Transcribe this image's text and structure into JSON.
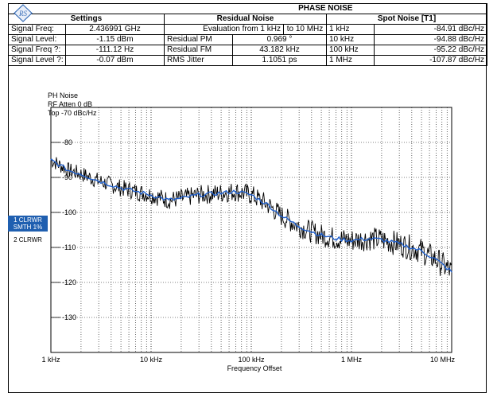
{
  "header": {
    "title": "PHASE NOISE",
    "settings_title": "Settings",
    "residual_title": "Residual Noise",
    "spot_title": "Spot Noise [T1]"
  },
  "settings": [
    {
      "label": "Signal Freq:",
      "value": "2.436991 GHz"
    },
    {
      "label": "Signal Level:",
      "value": "-1.15 dBm"
    },
    {
      "label": "Signal Freq ?:",
      "value": "-111.12 Hz"
    },
    {
      "label": "Signal Level ?:",
      "value": "-0.07 dBm"
    }
  ],
  "residual": {
    "evaluation_label": "Evaluation from 1 kHz",
    "evaluation_to": "to  10 MHz",
    "rows": [
      {
        "label": "Residual PM",
        "value": "0.969 °"
      },
      {
        "label": "Residual FM",
        "value": "43.182 kHz"
      },
      {
        "label": "RMS Jitter",
        "value": "1.1051 ps"
      }
    ]
  },
  "spot_noise": [
    {
      "offset": "1 kHz",
      "value": "-84.91 dBc/Hz"
    },
    {
      "offset": "10 kHz",
      "value": "-94.88 dBc/Hz"
    },
    {
      "offset": "100 kHz",
      "value": "-95.22 dBc/Hz"
    },
    {
      "offset": "1 MHz",
      "value": "-107.87 dBc/Hz"
    }
  ],
  "trace_info": {
    "line1": "PH Noise",
    "line2": "RF Atten       0 dB",
    "line3": "Top -70 dBc/Hz"
  },
  "side_labels": {
    "trace1_line1": "1 CLRWR",
    "trace1_line2": "SMTH 1%",
    "trace2": "2 CLRWR"
  },
  "colors": {
    "trace_raw": "#000000",
    "trace_smoothed": "#1f5fcc",
    "side_label_bg": "#1f5fb0",
    "grid": "#000000"
  },
  "chart_data": {
    "type": "line",
    "title": "",
    "xlabel": "Frequency Offset",
    "ylabel": "",
    "x_scale": "log",
    "xlim_hz": [
      1000,
      10000000
    ],
    "ylim": [
      -140,
      -70
    ],
    "x_ticks": [
      {
        "value": 1000,
        "label": "1 kHz"
      },
      {
        "value": 10000,
        "label": "10 kHz"
      },
      {
        "value": 100000,
        "label": "100 kHz"
      },
      {
        "value": 1000000,
        "label": "1 MHz"
      },
      {
        "value": 10000000,
        "label": "10 MHz"
      }
    ],
    "y_ticks": [
      -80,
      -90,
      -100,
      -110,
      -120,
      -130
    ],
    "grid": true,
    "series": [
      {
        "x": [
          1000,
          1500,
          2000,
          3000,
          5000,
          7000,
          10000,
          15000,
          20000,
          30000,
          50000,
          70000,
          100000,
          150000,
          200000,
          300000,
          400000,
          500000,
          700000,
          1000000,
          1500000,
          2000000,
          3000000,
          5000000,
          7000000,
          10000000
        ],
        "values": [
          -85,
          -88,
          -89,
          -91,
          -93,
          -94,
          -95,
          -96.5,
          -96,
          -95,
          -94.5,
          -94,
          -95,
          -98,
          -101,
          -104,
          -105.5,
          -106.5,
          -107.5,
          -108,
          -107.5,
          -107.8,
          -109,
          -111,
          -113.5,
          -117
        ]
      }
    ]
  }
}
